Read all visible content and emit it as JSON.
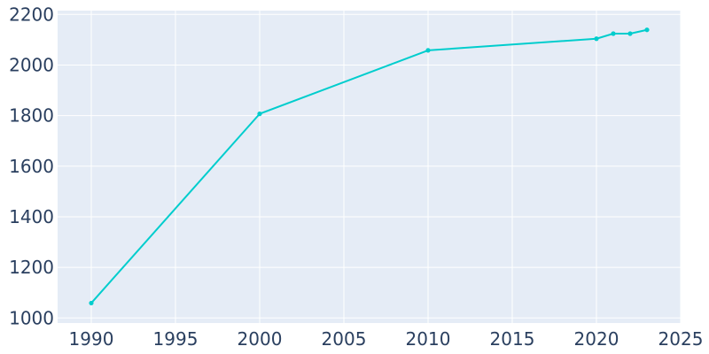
{
  "chart_data": {
    "type": "line",
    "title": "",
    "xlabel": "",
    "ylabel": "",
    "x": [
      1990,
      2000,
      2010,
      2020,
      2021,
      2022,
      2023
    ],
    "series": [
      {
        "values": [
          1059,
          1807,
          2058,
          2104,
          2124,
          2124,
          2139
        ]
      }
    ],
    "xlim": [
      1988,
      2025
    ],
    "ylim": [
      980,
      2215
    ],
    "xticks": [
      1990,
      1995,
      2000,
      2005,
      2010,
      2015,
      2020,
      2025
    ],
    "xtick_labels": [
      "1990",
      "1995",
      "2000",
      "2005",
      "2010",
      "2015",
      "2020",
      "2025"
    ],
    "yticks": [
      1000,
      1200,
      1400,
      1600,
      1800,
      2000,
      2200
    ],
    "ytick_labels": [
      "1000",
      "1200",
      "1400",
      "1600",
      "1800",
      "2000",
      "2200"
    ],
    "grid": true,
    "legend": "none",
    "colors": {
      "plot_background": "#e5ecf6",
      "grid": "#ffffff",
      "line": "#00cdcd",
      "tick_text": "#2a3f5f"
    }
  }
}
